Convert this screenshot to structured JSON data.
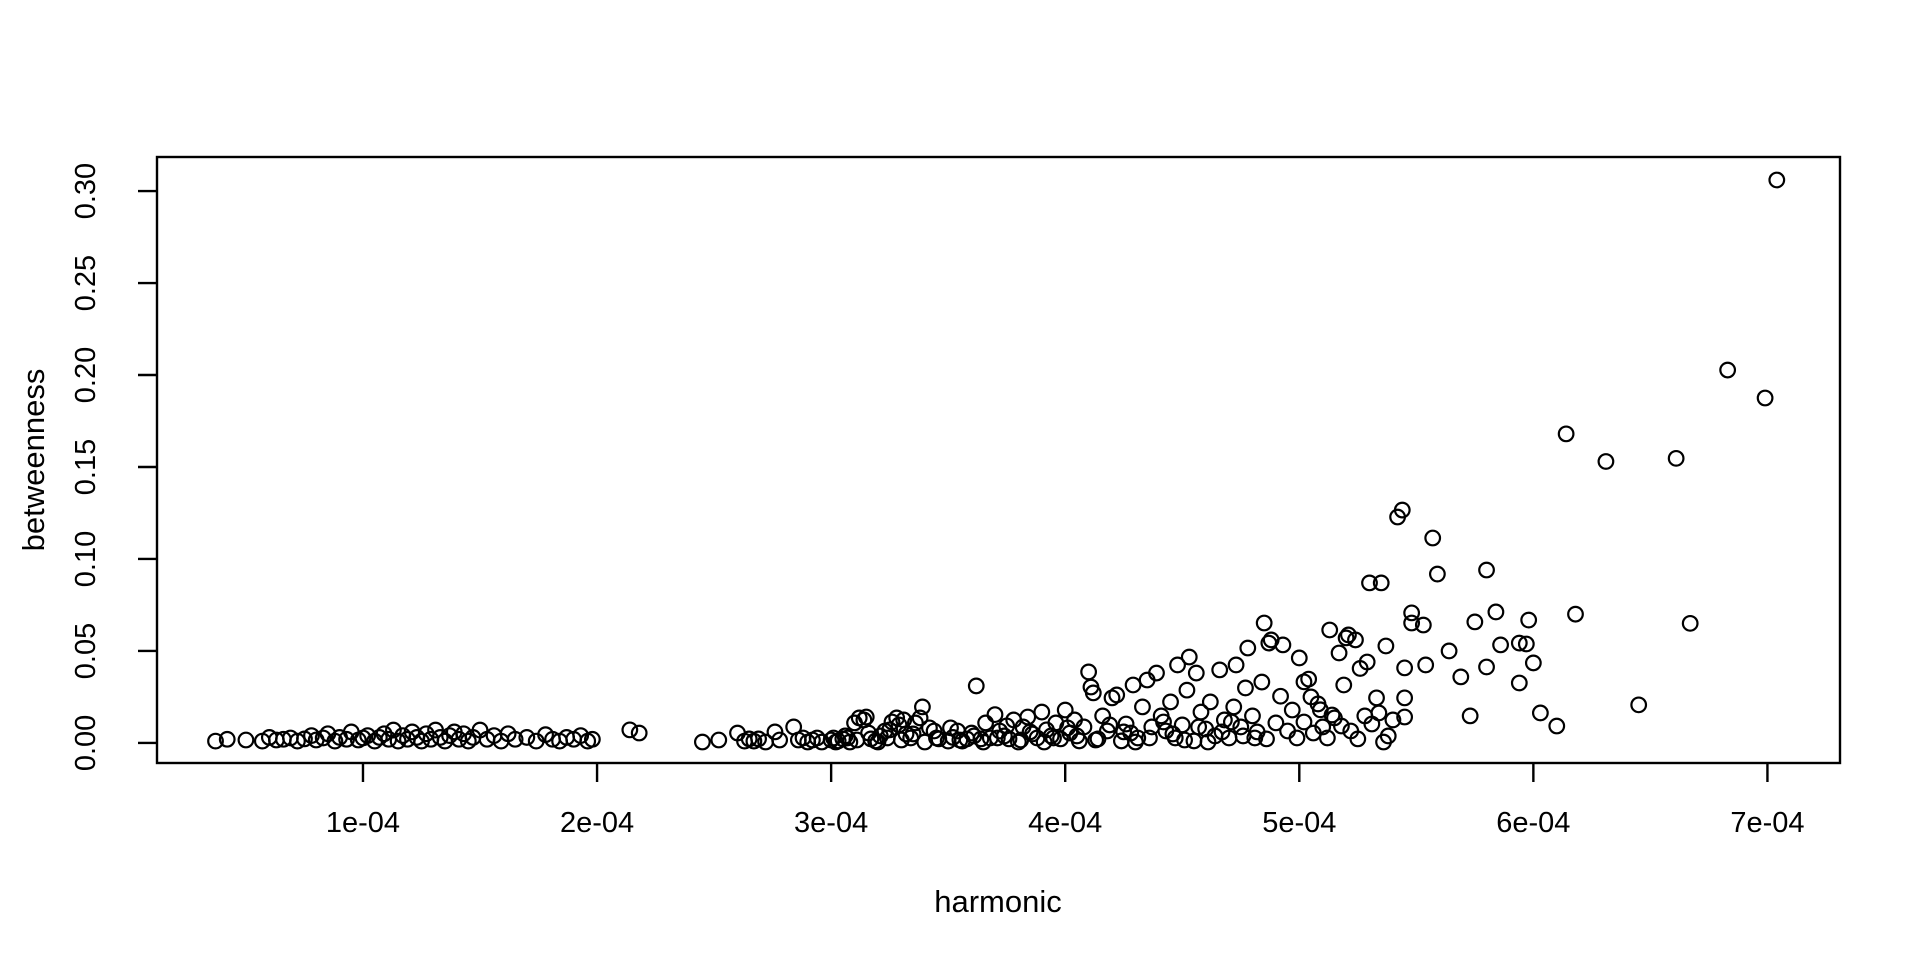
{
  "figure": {
    "background": "#ffffff",
    "foreground": "#000000"
  },
  "chart_data": {
    "type": "scatter",
    "title": "",
    "xlabel": "harmonic",
    "ylabel": "betweenness",
    "grid": false,
    "legend": "none",
    "marker": {
      "shape": "open-circle",
      "radius_px": 7.3,
      "stroke_px": 2.2,
      "color": "#000000"
    },
    "x_unit_multiplier": 0.0001,
    "x_tick_labels": [
      "1e-04",
      "2e-04",
      "3e-04",
      "4e-04",
      "5e-04",
      "6e-04",
      "7e-04"
    ],
    "x_tick_values": [
      1,
      2,
      3,
      4,
      5,
      6,
      7
    ],
    "y_tick_labels": [
      "0.00",
      "0.05",
      "0.10",
      "0.15",
      "0.20",
      "0.25",
      "0.30"
    ],
    "y_tick_values": [
      0.0,
      0.05,
      0.1,
      0.15,
      0.2,
      0.25,
      0.3
    ],
    "xlim": [
      0.12,
      7.31
    ],
    "ylim": [
      -0.0109,
      0.3185
    ],
    "points": [
      [
        0.37,
        0.001
      ],
      [
        0.42,
        0.002
      ],
      [
        0.5,
        0.0016
      ],
      [
        0.57,
        0.001
      ],
      [
        0.6,
        0.003
      ],
      [
        0.63,
        0.0016
      ],
      [
        0.66,
        0.002
      ],
      [
        0.69,
        0.0027
      ],
      [
        0.72,
        0.001
      ],
      [
        0.75,
        0.0022
      ],
      [
        0.78,
        0.004
      ],
      [
        0.8,
        0.0016
      ],
      [
        0.83,
        0.0027
      ],
      [
        0.85,
        0.005
      ],
      [
        0.88,
        0.001
      ],
      [
        0.9,
        0.003
      ],
      [
        0.93,
        0.002
      ],
      [
        0.95,
        0.006
      ],
      [
        0.98,
        0.0016
      ],
      [
        1.0,
        0.0027
      ],
      [
        1.02,
        0.004
      ],
      [
        1.05,
        0.001
      ],
      [
        1.07,
        0.003
      ],
      [
        1.09,
        0.005
      ],
      [
        1.11,
        0.002
      ],
      [
        1.13,
        0.007
      ],
      [
        1.15,
        0.001
      ],
      [
        1.17,
        0.004
      ],
      [
        1.19,
        0.002
      ],
      [
        1.21,
        0.006
      ],
      [
        1.23,
        0.003
      ],
      [
        1.25,
        0.001
      ],
      [
        1.27,
        0.005
      ],
      [
        1.29,
        0.002
      ],
      [
        1.31,
        0.007
      ],
      [
        1.33,
        0.003
      ],
      [
        1.35,
        0.001
      ],
      [
        1.37,
        0.004
      ],
      [
        1.39,
        0.006
      ],
      [
        1.41,
        0.002
      ],
      [
        1.43,
        0.005
      ],
      [
        1.45,
        0.001
      ],
      [
        1.47,
        0.003
      ],
      [
        1.5,
        0.007
      ],
      [
        1.53,
        0.002
      ],
      [
        1.56,
        0.004
      ],
      [
        1.59,
        0.001
      ],
      [
        1.62,
        0.005
      ],
      [
        1.65,
        0.002
      ],
      [
        1.7,
        0.003
      ],
      [
        1.74,
        0.001
      ],
      [
        1.78,
        0.0045
      ],
      [
        1.81,
        0.002
      ],
      [
        1.84,
        0.001
      ],
      [
        1.87,
        0.003
      ],
      [
        1.9,
        0.002
      ],
      [
        1.93,
        0.004
      ],
      [
        1.96,
        0.001
      ],
      [
        1.98,
        0.002
      ],
      [
        2.14,
        0.0071
      ],
      [
        2.18,
        0.0054
      ],
      [
        2.45,
        0.0005
      ],
      [
        2.52,
        0.0016
      ],
      [
        2.6,
        0.0054
      ],
      [
        2.63,
        0.001
      ],
      [
        2.65,
        0.0022
      ],
      [
        2.67,
        0.001
      ],
      [
        2.69,
        0.0022
      ],
      [
        2.72,
        0.0005
      ],
      [
        2.76,
        0.006
      ],
      [
        2.78,
        0.0016
      ],
      [
        2.84,
        0.0087
      ],
      [
        2.86,
        0.0016
      ],
      [
        2.88,
        0.0027
      ],
      [
        2.9,
        0.0005
      ],
      [
        2.92,
        0.0016
      ],
      [
        2.94,
        0.0027
      ],
      [
        2.96,
        0.0005
      ],
      [
        3.0,
        0.0016
      ],
      [
        3.01,
        0.0027
      ],
      [
        3.03,
        0.0011
      ],
      [
        3.05,
        0.0022
      ],
      [
        3.07,
        0.0027
      ],
      [
        3.08,
        0.0005
      ],
      [
        3.1,
        0.0109
      ],
      [
        3.12,
        0.0136
      ],
      [
        3.14,
        0.0125
      ],
      [
        3.15,
        0.0141
      ],
      [
        3.17,
        0.0022
      ],
      [
        3.19,
        0.0011
      ],
      [
        3.21,
        0.0038
      ],
      [
        3.23,
        0.0065
      ],
      [
        3.25,
        0.0071
      ],
      [
        3.26,
        0.0114
      ],
      [
        3.28,
        0.0136
      ],
      [
        3.29,
        0.0098
      ],
      [
        3.31,
        0.0125
      ],
      [
        3.32,
        0.0049
      ],
      [
        3.34,
        0.0027
      ],
      [
        3.36,
        0.0109
      ],
      [
        3.38,
        0.0136
      ],
      [
        3.39,
        0.0196
      ],
      [
        3.42,
        0.0082
      ],
      [
        3.44,
        0.0065
      ],
      [
        3.45,
        0.0027
      ],
      [
        3.5,
        0.001
      ],
      [
        3.52,
        0.003
      ],
      [
        3.54,
        0.0065
      ],
      [
        3.56,
        0.001
      ],
      [
        3.58,
        0.0022
      ],
      [
        3.6,
        0.0054
      ],
      [
        3.62,
        0.031
      ],
      [
        3.64,
        0.0022
      ],
      [
        3.66,
        0.0109
      ],
      [
        3.68,
        0.0027
      ],
      [
        3.7,
        0.0154
      ],
      [
        3.72,
        0.0065
      ],
      [
        3.74,
        0.0038
      ],
      [
        3.76,
        0.0022
      ],
      [
        3.78,
        0.0125
      ],
      [
        3.8,
        0.0005
      ],
      [
        3.82,
        0.0087
      ],
      [
        3.84,
        0.0141
      ],
      [
        3.86,
        0.0049
      ],
      [
        3.88,
        0.0027
      ],
      [
        3.9,
        0.0168
      ],
      [
        3.92,
        0.0071
      ],
      [
        3.94,
        0.0038
      ],
      [
        3.96,
        0.0109
      ],
      [
        3.98,
        0.0022
      ],
      [
        4.0,
        0.0179
      ],
      [
        4.02,
        0.0054
      ],
      [
        4.04,
        0.0125
      ],
      [
        4.06,
        0.0011
      ],
      [
        4.08,
        0.0087
      ],
      [
        4.1,
        0.0386
      ],
      [
        4.11,
        0.0304
      ],
      [
        4.12,
        0.0272
      ],
      [
        4.14,
        0.0022
      ],
      [
        4.16,
        0.0147
      ],
      [
        4.18,
        0.0065
      ],
      [
        4.2,
        0.0245
      ],
      [
        4.22,
        0.0261
      ],
      [
        4.24,
        0.0011
      ],
      [
        4.26,
        0.0103
      ],
      [
        4.28,
        0.0054
      ],
      [
        4.29,
        0.0315
      ],
      [
        4.31,
        0.0027
      ],
      [
        4.33,
        0.0196
      ],
      [
        4.35,
        0.0342
      ],
      [
        4.37,
        0.0087
      ],
      [
        4.39,
        0.038
      ],
      [
        4.41,
        0.0147
      ],
      [
        4.43,
        0.0065
      ],
      [
        4.45,
        0.0223
      ],
      [
        4.47,
        0.0027
      ],
      [
        4.48,
        0.0424
      ],
      [
        4.5,
        0.0098
      ],
      [
        4.52,
        0.0287
      ],
      [
        4.53,
        0.0467
      ],
      [
        4.55,
        0.0011
      ],
      [
        4.56,
        0.038
      ],
      [
        4.58,
        0.0168
      ],
      [
        4.6,
        0.0076
      ],
      [
        4.62,
        0.0223
      ],
      [
        4.64,
        0.0038
      ],
      [
        4.66,
        0.0397
      ],
      [
        4.68,
        0.0125
      ],
      [
        4.7,
        0.0027
      ],
      [
        4.72,
        0.0196
      ],
      [
        4.73,
        0.0424
      ],
      [
        4.75,
        0.0087
      ],
      [
        4.77,
        0.0299
      ],
      [
        4.78,
        0.0516
      ],
      [
        4.8,
        0.0147
      ],
      [
        4.82,
        0.006
      ],
      [
        4.84,
        0.0331
      ],
      [
        4.85,
        0.0652
      ],
      [
        4.86,
        0.0022
      ],
      [
        4.87,
        0.0543
      ],
      [
        4.88,
        0.056
      ],
      [
        4.9,
        0.0109
      ],
      [
        4.92,
        0.0254
      ],
      [
        4.93,
        0.0533
      ],
      [
        4.95,
        0.0065
      ],
      [
        4.97,
        0.0179
      ],
      [
        4.99,
        0.0027
      ],
      [
        5.0,
        0.0462
      ],
      [
        5.02,
        0.0114
      ],
      [
        5.04,
        0.0347
      ],
      [
        5.06,
        0.0054
      ],
      [
        5.08,
        0.0212
      ],
      [
        5.1,
        0.0087
      ],
      [
        5.12,
        0.0027
      ],
      [
        5.13,
        0.0614
      ],
      [
        5.15,
        0.0136
      ],
      [
        5.17,
        0.0489
      ],
      [
        5.19,
        0.0315
      ],
      [
        5.2,
        0.0571
      ],
      [
        5.21,
        0.0587
      ],
      [
        5.22,
        0.0065
      ],
      [
        5.24,
        0.056
      ],
      [
        5.25,
        0.0022
      ],
      [
        5.26,
        0.0405
      ],
      [
        5.28,
        0.0147
      ],
      [
        5.29,
        0.044
      ],
      [
        5.3,
        0.087
      ],
      [
        5.31,
        0.0103
      ],
      [
        5.33,
        0.0245
      ],
      [
        5.35,
        0.087
      ],
      [
        5.36,
        0.0005
      ],
      [
        5.37,
        0.0527
      ],
      [
        5.38,
        0.0038
      ],
      [
        5.4,
        0.0125
      ],
      [
        5.02,
        0.0332
      ],
      [
        5.05,
        0.025
      ],
      [
        5.09,
        0.018
      ],
      [
        5.14,
        0.0152
      ],
      [
        5.18,
        0.0092
      ],
      [
        5.34,
        0.0163
      ],
      [
        3.02,
        0.0005
      ],
      [
        3.06,
        0.0038
      ],
      [
        3.11,
        0.0016
      ],
      [
        3.16,
        0.0054
      ],
      [
        3.2,
        0.0005
      ],
      [
        3.24,
        0.0027
      ],
      [
        3.3,
        0.0016
      ],
      [
        3.35,
        0.0049
      ],
      [
        3.4,
        0.0005
      ],
      [
        3.46,
        0.0022
      ],
      [
        3.51,
        0.0082
      ],
      [
        3.55,
        0.0016
      ],
      [
        3.61,
        0.0038
      ],
      [
        3.65,
        0.0005
      ],
      [
        3.71,
        0.0027
      ],
      [
        3.75,
        0.0093
      ],
      [
        3.81,
        0.0016
      ],
      [
        3.85,
        0.006
      ],
      [
        3.91,
        0.0005
      ],
      [
        3.95,
        0.0027
      ],
      [
        4.01,
        0.0082
      ],
      [
        4.05,
        0.0038
      ],
      [
        4.13,
        0.0016
      ],
      [
        4.19,
        0.0098
      ],
      [
        4.25,
        0.006
      ],
      [
        4.3,
        0.0005
      ],
      [
        4.36,
        0.0027
      ],
      [
        4.42,
        0.0114
      ],
      [
        4.46,
        0.0049
      ],
      [
        4.51,
        0.0016
      ],
      [
        4.57,
        0.0087
      ],
      [
        4.61,
        0.0005
      ],
      [
        4.67,
        0.006
      ],
      [
        4.71,
        0.0114
      ],
      [
        4.76,
        0.0038
      ],
      [
        4.81,
        0.0027
      ],
      [
        5.42,
        0.1228
      ],
      [
        5.44,
        0.1266
      ],
      [
        5.45,
        0.0408
      ],
      [
        5.45,
        0.0245
      ],
      [
        5.45,
        0.0141
      ],
      [
        5.48,
        0.0707
      ],
      [
        5.48,
        0.0652
      ],
      [
        5.53,
        0.0641
      ],
      [
        5.54,
        0.0424
      ],
      [
        5.57,
        0.1114
      ],
      [
        5.59,
        0.0918
      ],
      [
        5.64,
        0.05
      ],
      [
        5.69,
        0.0359
      ],
      [
        5.73,
        0.0147
      ],
      [
        5.75,
        0.0658
      ],
      [
        5.8,
        0.094
      ],
      [
        5.8,
        0.0413
      ],
      [
        5.84,
        0.0712
      ],
      [
        5.86,
        0.0533
      ],
      [
        5.94,
        0.0543
      ],
      [
        5.94,
        0.0326
      ],
      [
        5.97,
        0.0538
      ],
      [
        5.98,
        0.0668
      ],
      [
        6.0,
        0.0435
      ],
      [
        6.03,
        0.0163
      ],
      [
        6.1,
        0.0092
      ],
      [
        6.14,
        0.168
      ],
      [
        6.18,
        0.07
      ],
      [
        6.31,
        0.153
      ],
      [
        6.45,
        0.0207
      ],
      [
        6.61,
        0.1547
      ],
      [
        6.67,
        0.065
      ],
      [
        6.83,
        0.2027
      ],
      [
        6.99,
        0.1875
      ],
      [
        7.04,
        0.306
      ]
    ]
  }
}
